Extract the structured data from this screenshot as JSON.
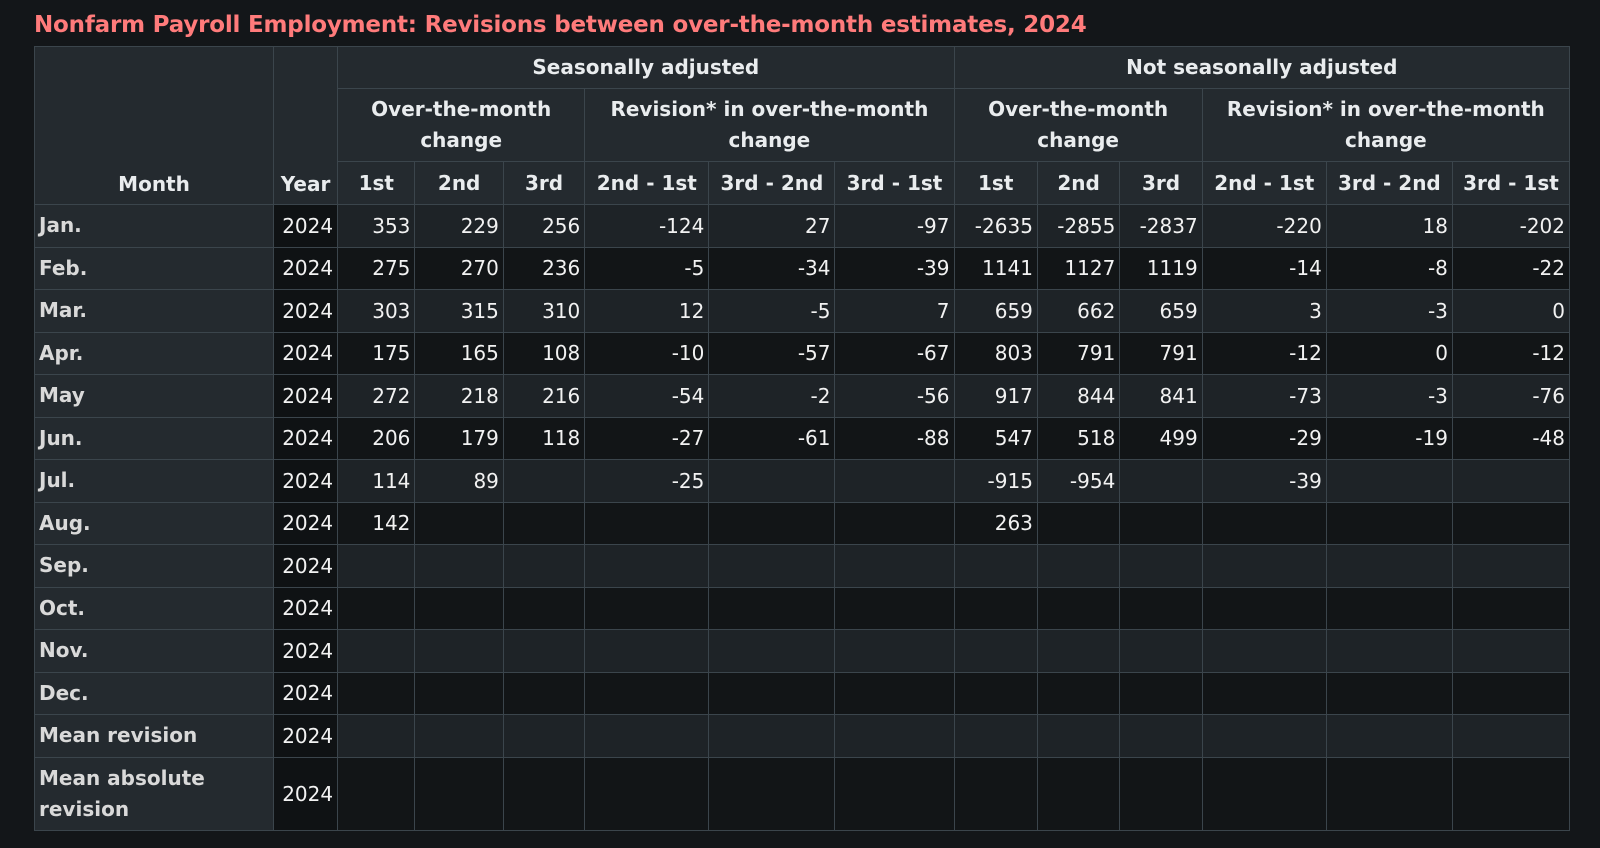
{
  "title": "Nonfarm Payroll Employment: Revisions between over-the-month estimates, 2024",
  "colors": {
    "background": "#131619",
    "title": "#ff7b7b",
    "header_bg": "#242a2f",
    "border": "#3b454c"
  },
  "headers": {
    "month": "Month",
    "year": "Year",
    "sa": "Seasonally adjusted",
    "nsa": "Not seasonally adjusted",
    "otm_change": "Over-the-month change",
    "revision": "Revision* in over-the-month change",
    "est_cols": [
      "1st",
      "2nd",
      "3rd"
    ],
    "rev_cols": [
      "2nd - 1st",
      "3rd - 2nd",
      "3rd - 1st"
    ]
  },
  "rows": [
    {
      "month": "Jan.",
      "year": "2024",
      "sa": [
        "353",
        "229",
        "256"
      ],
      "sa_rev": [
        "-124",
        "27",
        "-97"
      ],
      "nsa": [
        "-2635",
        "-2855",
        "-2837"
      ],
      "nsa_rev": [
        "-220",
        "18",
        "-202"
      ]
    },
    {
      "month": "Feb.",
      "year": "2024",
      "sa": [
        "275",
        "270",
        "236"
      ],
      "sa_rev": [
        "-5",
        "-34",
        "-39"
      ],
      "nsa": [
        "1141",
        "1127",
        "1119"
      ],
      "nsa_rev": [
        "-14",
        "-8",
        "-22"
      ]
    },
    {
      "month": "Mar.",
      "year": "2024",
      "sa": [
        "303",
        "315",
        "310"
      ],
      "sa_rev": [
        "12",
        "-5",
        "7"
      ],
      "nsa": [
        "659",
        "662",
        "659"
      ],
      "nsa_rev": [
        "3",
        "-3",
        "0"
      ]
    },
    {
      "month": "Apr.",
      "year": "2024",
      "sa": [
        "175",
        "165",
        "108"
      ],
      "sa_rev": [
        "-10",
        "-57",
        "-67"
      ],
      "nsa": [
        "803",
        "791",
        "791"
      ],
      "nsa_rev": [
        "-12",
        "0",
        "-12"
      ]
    },
    {
      "month": "May",
      "year": "2024",
      "sa": [
        "272",
        "218",
        "216"
      ],
      "sa_rev": [
        "-54",
        "-2",
        "-56"
      ],
      "nsa": [
        "917",
        "844",
        "841"
      ],
      "nsa_rev": [
        "-73",
        "-3",
        "-76"
      ]
    },
    {
      "month": "Jun.",
      "year": "2024",
      "sa": [
        "206",
        "179",
        "118"
      ],
      "sa_rev": [
        "-27",
        "-61",
        "-88"
      ],
      "nsa": [
        "547",
        "518",
        "499"
      ],
      "nsa_rev": [
        "-29",
        "-19",
        "-48"
      ]
    },
    {
      "month": "Jul.",
      "year": "2024",
      "sa": [
        "114",
        "89",
        ""
      ],
      "sa_rev": [
        "-25",
        "",
        ""
      ],
      "nsa": [
        "-915",
        "-954",
        ""
      ],
      "nsa_rev": [
        "-39",
        "",
        ""
      ]
    },
    {
      "month": "Aug.",
      "year": "2024",
      "sa": [
        "142",
        "",
        ""
      ],
      "sa_rev": [
        "",
        "",
        ""
      ],
      "nsa": [
        "263",
        "",
        ""
      ],
      "nsa_rev": [
        "",
        "",
        ""
      ]
    },
    {
      "month": "Sep.",
      "year": "2024",
      "sa": [
        "",
        "",
        ""
      ],
      "sa_rev": [
        "",
        "",
        ""
      ],
      "nsa": [
        "",
        "",
        ""
      ],
      "nsa_rev": [
        "",
        "",
        ""
      ]
    },
    {
      "month": "Oct.",
      "year": "2024",
      "sa": [
        "",
        "",
        ""
      ],
      "sa_rev": [
        "",
        "",
        ""
      ],
      "nsa": [
        "",
        "",
        ""
      ],
      "nsa_rev": [
        "",
        "",
        ""
      ]
    },
    {
      "month": "Nov.",
      "year": "2024",
      "sa": [
        "",
        "",
        ""
      ],
      "sa_rev": [
        "",
        "",
        ""
      ],
      "nsa": [
        "",
        "",
        ""
      ],
      "nsa_rev": [
        "",
        "",
        ""
      ]
    },
    {
      "month": "Dec.",
      "year": "2024",
      "sa": [
        "",
        "",
        ""
      ],
      "sa_rev": [
        "",
        "",
        ""
      ],
      "nsa": [
        "",
        "",
        ""
      ],
      "nsa_rev": [
        "",
        "",
        ""
      ]
    },
    {
      "month": "Mean revision",
      "year": "2024",
      "sa": [
        "",
        "",
        ""
      ],
      "sa_rev": [
        "",
        "",
        ""
      ],
      "nsa": [
        "",
        "",
        ""
      ],
      "nsa_rev": [
        "",
        "",
        ""
      ]
    },
    {
      "month": "Mean absolute revision",
      "year": "2024",
      "sa": [
        "",
        "",
        ""
      ],
      "sa_rev": [
        "",
        "",
        ""
      ],
      "nsa": [
        "",
        "",
        ""
      ],
      "nsa_rev": [
        "",
        "",
        ""
      ]
    }
  ]
}
